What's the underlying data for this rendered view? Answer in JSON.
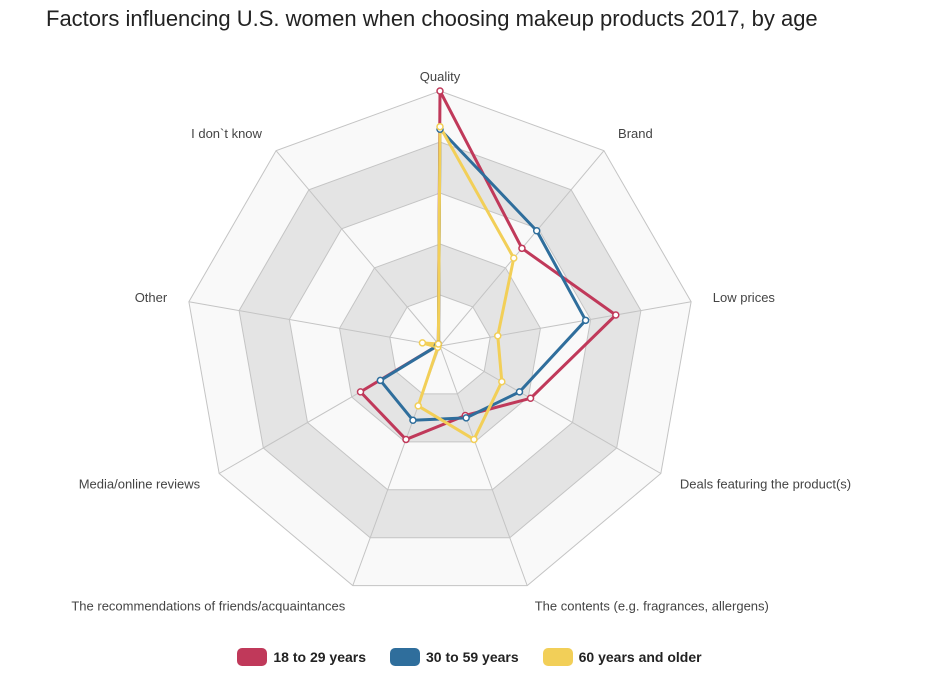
{
  "title": "Factors influencing U.S. women when choosing makeup products 2017, by age",
  "chart_data": {
    "type": "radar",
    "title": "Factors influencing U.S. women when choosing makeup products 2017, by age",
    "categories": [
      "Quality",
      "Brand",
      "Low prices",
      "Deals featuring the product(s)",
      "The contents (e.g. fragrances, allergens)",
      "The recommendations of friends/acquaintances",
      "Media/online reviews",
      "Other",
      "I don`t know"
    ],
    "rmax": 100,
    "rings": 5,
    "grid": true,
    "legend_position": "bottom",
    "series": [
      {
        "name": "18 to 29 years",
        "color": "#c0395a",
        "values": [
          100,
          50,
          70,
          41,
          29,
          39,
          36,
          1,
          1
        ]
      },
      {
        "name": "30 to 59 years",
        "color": "#2f6e9c",
        "values": [
          85,
          59,
          58,
          36,
          30,
          31,
          27,
          1,
          1
        ]
      },
      {
        "name": "60 years and older",
        "color": "#f2cf58",
        "values": [
          86,
          45,
          23,
          28,
          39,
          25,
          1,
          7,
          1
        ]
      }
    ]
  }
}
